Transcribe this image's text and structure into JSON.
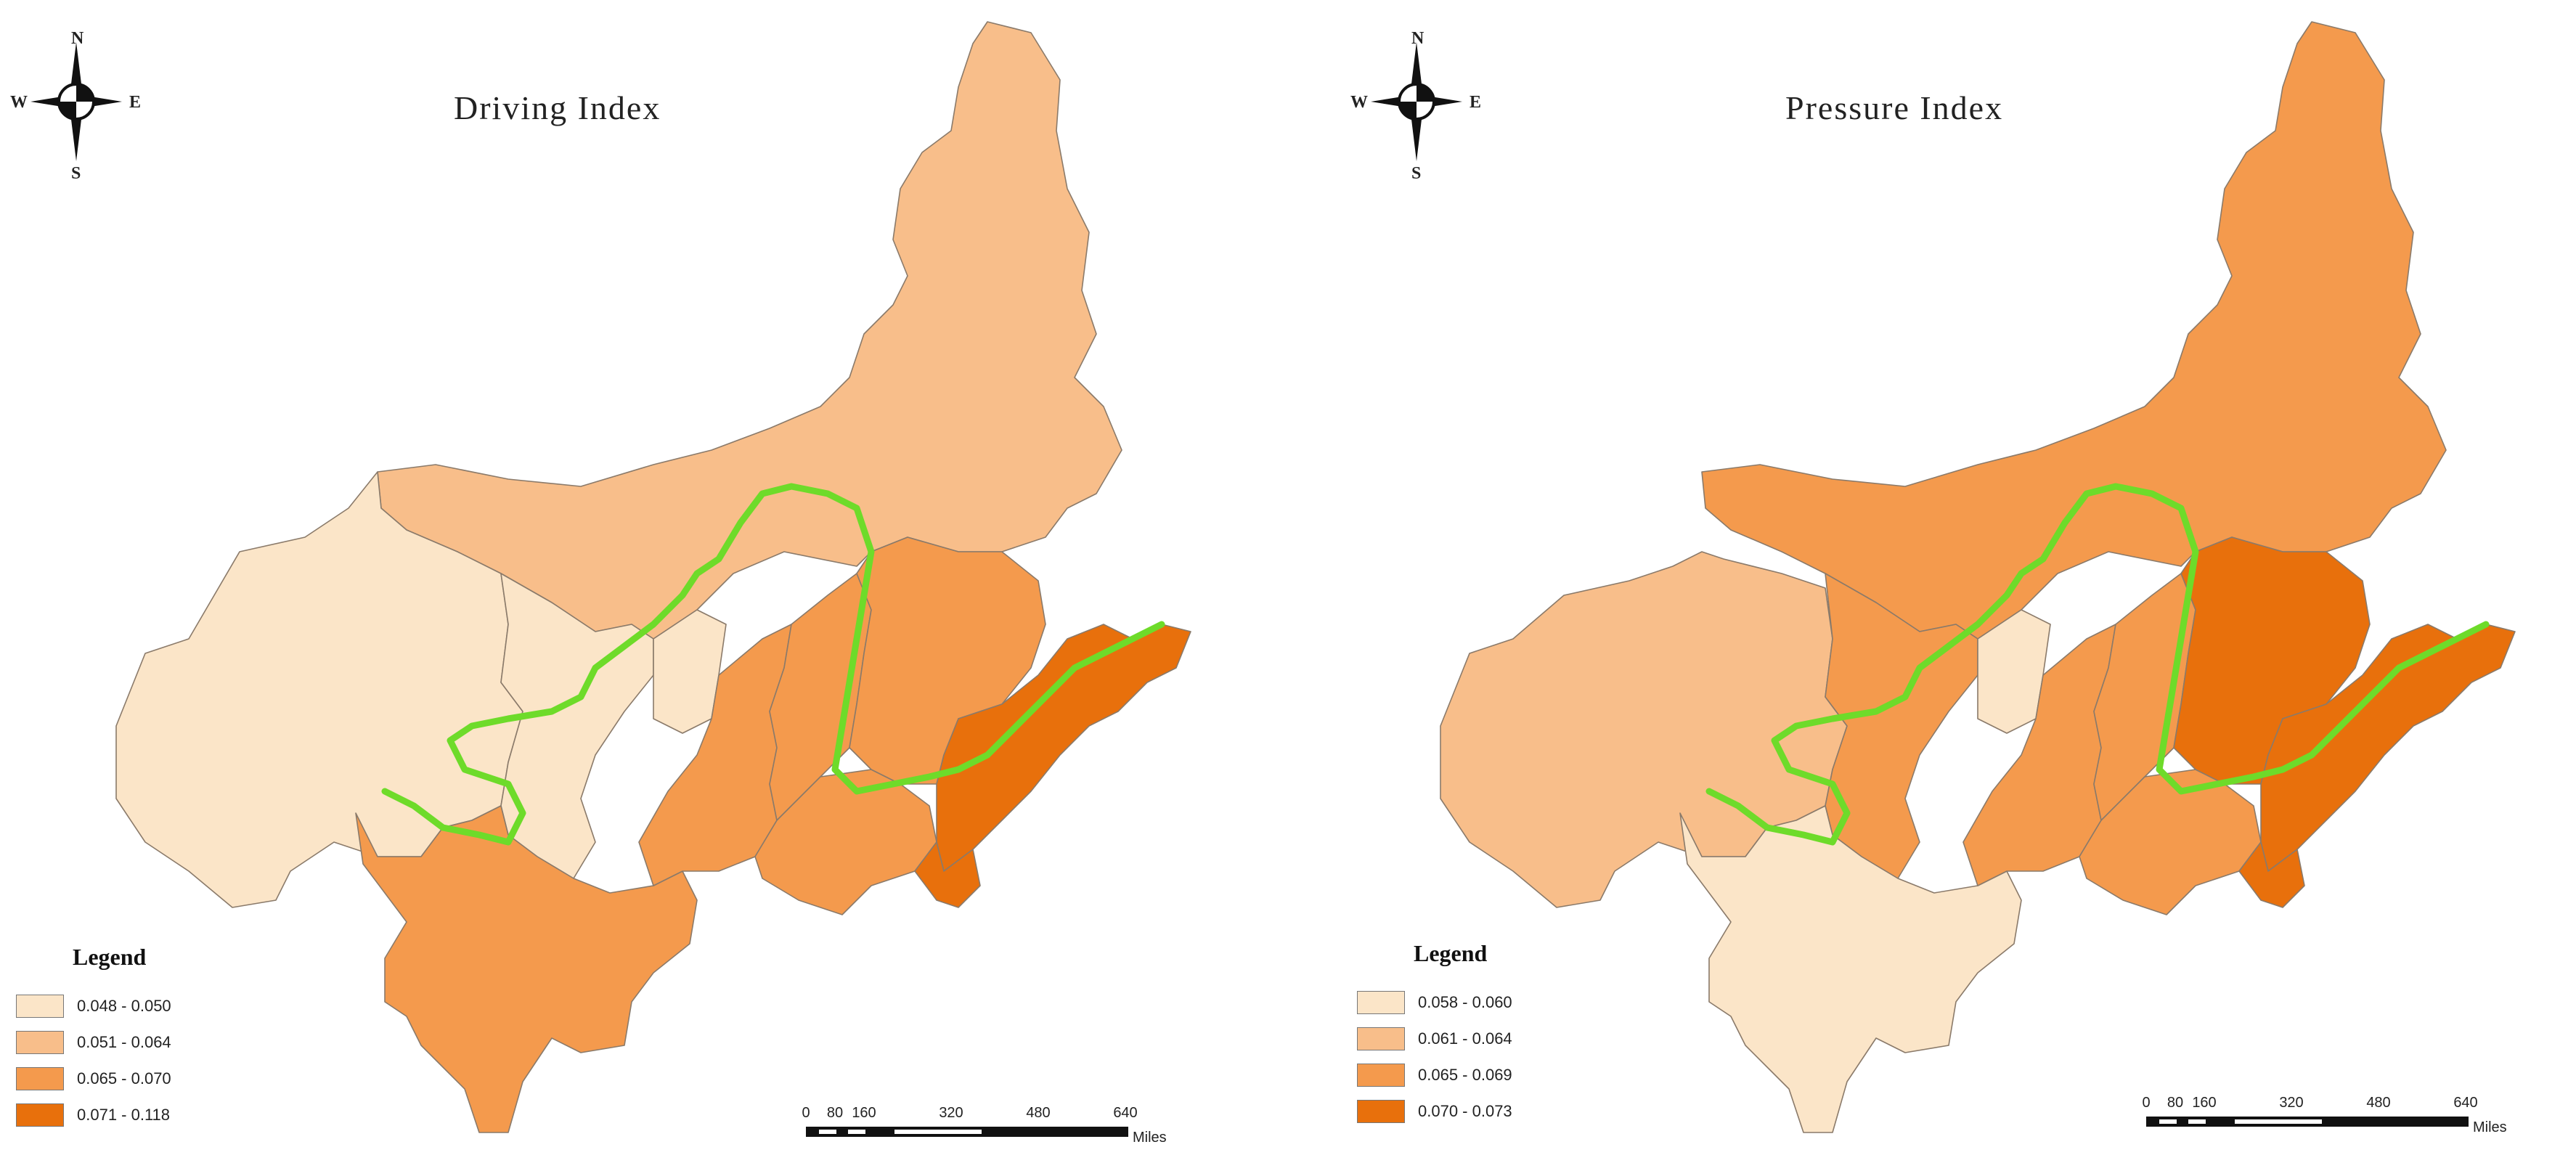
{
  "maps": [
    {
      "title": "Driving Index",
      "compass": {
        "n": "N",
        "s": "S",
        "e": "E",
        "w": "W"
      },
      "legend": {
        "title": "Legend",
        "items": [
          {
            "label": "0.048 - 0.050",
            "color": "#fbe5c8"
          },
          {
            "label": "0.051 - 0.064",
            "color": "#f8be8a"
          },
          {
            "label": "0.065 - 0.070",
            "color": "#f49a4d"
          },
          {
            "label": "0.071 - 0.118",
            "color": "#e8700c"
          }
        ]
      },
      "scalebar": {
        "ticks": [
          "0",
          "80",
          "160",
          "320",
          "480",
          "640"
        ],
        "unit": "Miles"
      }
    },
    {
      "title": "Pressure Index",
      "compass": {
        "n": "N",
        "s": "S",
        "e": "E",
        "w": "W"
      },
      "legend": {
        "title": "Legend",
        "items": [
          {
            "label": "0.058 - 0.060",
            "color": "#fbe5c8"
          },
          {
            "label": "0.061 - 0.064",
            "color": "#f8be8a"
          },
          {
            "label": "0.065 - 0.069",
            "color": "#f49a4d"
          },
          {
            "label": "0.070 - 0.073",
            "color": "#e8700c"
          }
        ]
      },
      "scalebar": {
        "ticks": [
          "0",
          "80",
          "160",
          "320",
          "480",
          "640"
        ],
        "unit": "Miles"
      }
    }
  ],
  "colors": {
    "river": "#6edb2a",
    "boundary": "#8a7a6a"
  }
}
